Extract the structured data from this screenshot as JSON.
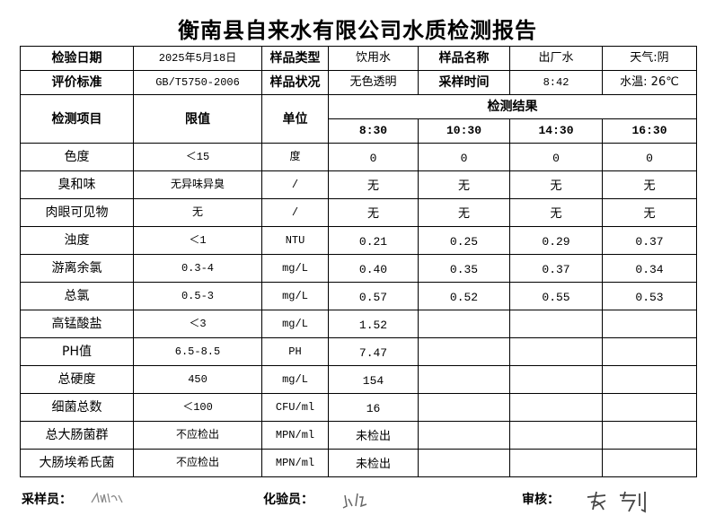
{
  "title": "衡南县自来水有限公司水质检测报告",
  "info": {
    "date_label": "检验日期",
    "date": "2025年5月18日",
    "type_label": "样品类型",
    "type": "饮用水",
    "name_label": "样品名称",
    "name": "出厂水",
    "weather": "天气:阴",
    "standard_label": "评价标准",
    "standard": "GB/T5750-2006",
    "condition_label": "样品状况",
    "condition": "无色透明",
    "sample_time_label": "采样时间",
    "sample_time": "8:42",
    "water_temp": "水温: 26℃"
  },
  "header": {
    "item": "检测项目",
    "limit": "限值",
    "unit": "单位",
    "results": "检测结果",
    "times": [
      "8:30",
      "10:30",
      "14:30",
      "16:30"
    ]
  },
  "rows": [
    {
      "item": "色度",
      "limit": "＜15",
      "unit": "度",
      "r": [
        "0",
        "0",
        "0",
        "0"
      ]
    },
    {
      "item": "臭和味",
      "limit": "无异味异臭",
      "unit": "/",
      "r": [
        "无",
        "无",
        "无",
        "无"
      ]
    },
    {
      "item": "肉眼可见物",
      "limit": "无",
      "unit": "/",
      "r": [
        "无",
        "无",
        "无",
        "无"
      ]
    },
    {
      "item": "浊度",
      "limit": "＜1",
      "unit": "NTU",
      "r": [
        "0.21",
        "0.25",
        "0.29",
        "0.37"
      ]
    },
    {
      "item": "游离余氯",
      "limit": "0.3-4",
      "unit": "mg/L",
      "r": [
        "0.40",
        "0.35",
        "0.37",
        "0.34"
      ]
    },
    {
      "item": "总氯",
      "limit": "0.5-3",
      "unit": "mg/L",
      "r": [
        "0.57",
        "0.52",
        "0.55",
        "0.53"
      ]
    },
    {
      "item": "高锰酸盐",
      "limit": "＜3",
      "unit": "mg/L",
      "r": [
        "1.52",
        "",
        "",
        ""
      ]
    },
    {
      "item": "PH值",
      "limit": "6.5-8.5",
      "unit": "PH",
      "r": [
        "7.47",
        "",
        "",
        ""
      ]
    },
    {
      "item": "总硬度",
      "limit": "450",
      "unit": "mg/L",
      "r": [
        "154",
        "",
        "",
        ""
      ]
    },
    {
      "item": "细菌总数",
      "limit": "＜100",
      "unit": "CFU/ml",
      "r": [
        "16",
        "",
        "",
        ""
      ]
    },
    {
      "item": "总大肠菌群",
      "limit": "不应检出",
      "unit": "MPN/ml",
      "r": [
        "未检出",
        "",
        "",
        ""
      ]
    },
    {
      "item": "大肠埃希氏菌",
      "limit": "不应检出",
      "unit": "MPN/ml",
      "r": [
        "未检出",
        "",
        "",
        ""
      ]
    }
  ],
  "footer": {
    "sampler": "采样员：",
    "tester": "化验员：",
    "reviewer": "审核："
  }
}
